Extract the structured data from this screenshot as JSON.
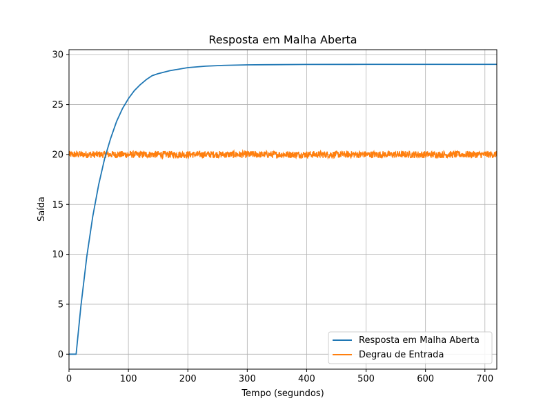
{
  "chart_data": {
    "type": "line",
    "title": "Resposta em Malha Aberta",
    "xlabel": "Tempo (segundos)",
    "ylabel": "Saída",
    "xlim": [
      0,
      720
    ],
    "ylim": [
      -1.5,
      30.5
    ],
    "xticks": [
      0,
      100,
      200,
      300,
      400,
      500,
      600,
      700
    ],
    "yticks": [
      0,
      5,
      10,
      15,
      20,
      25,
      30
    ],
    "grid": true,
    "legend_position": "lower-right",
    "series": [
      {
        "name": "Resposta em Malha Aberta",
        "color": "#1f77b4",
        "x": [
          0,
          10,
          12,
          20,
          30,
          40,
          50,
          60,
          70,
          80,
          90,
          100,
          110,
          120,
          130,
          140,
          150,
          170,
          200,
          230,
          260,
          300,
          350,
          400,
          500,
          600,
          720
        ],
        "y": [
          0,
          0,
          0,
          4.8,
          9.8,
          13.8,
          17.0,
          19.6,
          21.6,
          23.3,
          24.6,
          25.6,
          26.4,
          27.0,
          27.5,
          27.9,
          28.1,
          28.4,
          28.7,
          28.85,
          28.93,
          28.98,
          29.0,
          29.02,
          29.03,
          29.03,
          29.03
        ]
      },
      {
        "name": "Degrau de Entrada",
        "color": "#ff7f0e",
        "x": [
          0,
          720
        ],
        "y": [
          20,
          20
        ],
        "noise_amplitude": 0.35
      }
    ]
  }
}
